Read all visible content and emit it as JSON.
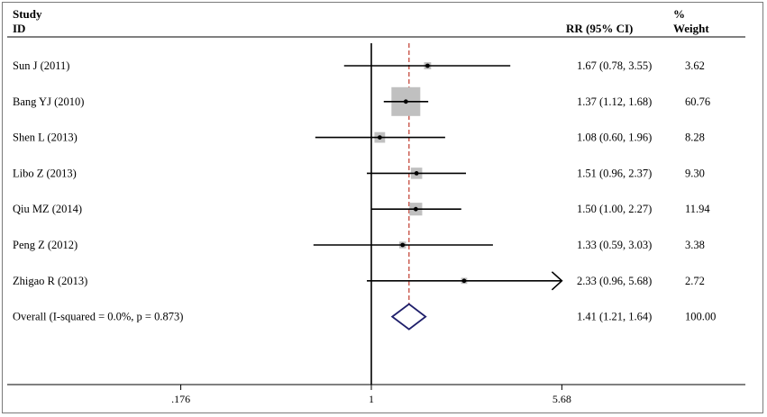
{
  "chart_data": {
    "type": "forest",
    "headers": {
      "study_line1": "Study",
      "study_line2": "ID",
      "effect": "RR (95% CI)",
      "weight_line1": "%",
      "weight_line2": "Weight"
    },
    "x_scale": "log",
    "x_ticks": [
      {
        "value": 0.176,
        "label": ".176"
      },
      {
        "value": 1,
        "label": "1"
      },
      {
        "value": 5.68,
        "label": "5.68"
      }
    ],
    "null_value": 1,
    "pooled_estimate": 1.41,
    "studies": [
      {
        "label": "Sun J (2011)",
        "rr": 1.67,
        "lo": 0.78,
        "hi": 3.55,
        "rr_text": "1.67 (0.78, 3.55)",
        "weight": 3.62,
        "weight_text": "3.62"
      },
      {
        "label": "Bang YJ (2010)",
        "rr": 1.37,
        "lo": 1.12,
        "hi": 1.68,
        "rr_text": "1.37 (1.12, 1.68)",
        "weight": 60.76,
        "weight_text": "60.76"
      },
      {
        "label": "Shen L (2013)",
        "rr": 1.08,
        "lo": 0.6,
        "hi": 1.96,
        "rr_text": "1.08 (0.60, 1.96)",
        "weight": 8.28,
        "weight_text": "8.28"
      },
      {
        "label": "Libo Z (2013)",
        "rr": 1.51,
        "lo": 0.96,
        "hi": 2.37,
        "rr_text": "1.51 (0.96, 2.37)",
        "weight": 9.3,
        "weight_text": "9.30"
      },
      {
        "label": "Qiu MZ (2014)",
        "rr": 1.5,
        "lo": 1.0,
        "hi": 2.27,
        "rr_text": "1.50 (1.00, 2.27)",
        "weight": 11.94,
        "weight_text": "11.94"
      },
      {
        "label": "Peng Z (2012)",
        "rr": 1.33,
        "lo": 0.59,
        "hi": 3.03,
        "rr_text": "1.33 (0.59, 3.03)",
        "weight": 3.38,
        "weight_text": "3.38"
      },
      {
        "label": "Zhigao R (2013)",
        "rr": 2.33,
        "lo": 0.96,
        "hi": 5.68,
        "rr_text": "2.33 (0.96, 5.68)",
        "weight": 2.72,
        "weight_text": "2.72",
        "arrow_right": true
      }
    ],
    "overall": {
      "label": "Overall (I-squared = 0.0%, p = 0.873)",
      "rr": 1.41,
      "lo": 1.21,
      "hi": 1.64,
      "rr_text": "1.41 (1.21, 1.64)",
      "weight_text": "100.00"
    },
    "colors": {
      "ci_line": "#000000",
      "weight_box": "#c0c0c0",
      "null_line": "#000000",
      "pooled_line": "#c0392b",
      "diamond": "#1f1f6b",
      "frame": "#7a7a7a"
    }
  }
}
